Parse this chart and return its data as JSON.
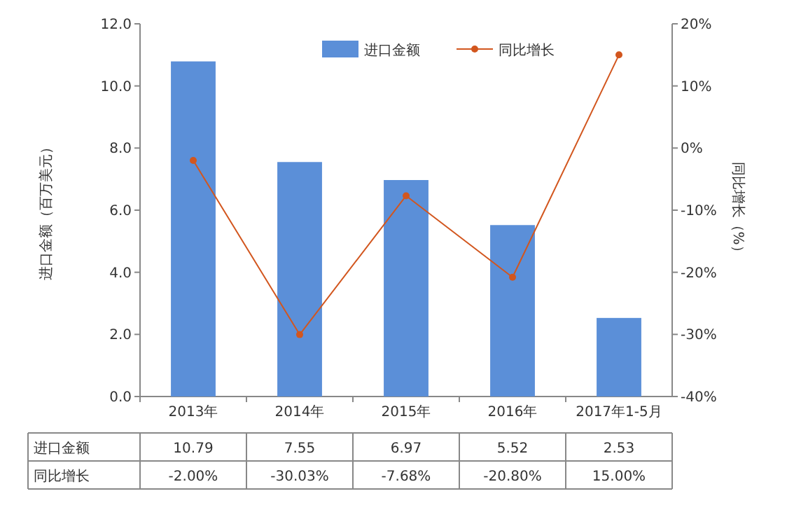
{
  "chart_data": {
    "type": "bar",
    "categories": [
      "2013年",
      "2014年",
      "2015年",
      "2016年",
      "2017年1-5月"
    ],
    "ylabel": "进口金额（百万美元）",
    "y2label": "同比增长（%）",
    "ylim": [
      0,
      12
    ],
    "yticks": [
      {
        "value": 0,
        "label": "0.0"
      },
      {
        "value": 2,
        "label": "2.0"
      },
      {
        "value": 4,
        "label": "4.0"
      },
      {
        "value": 6,
        "label": "6.0"
      },
      {
        "value": 8,
        "label": "8.0"
      },
      {
        "value": 10,
        "label": "10.0"
      },
      {
        "value": 12,
        "label": "12.0"
      }
    ],
    "y2lim": [
      -40,
      20
    ],
    "y2ticks": [
      {
        "value": -40,
        "label": "-40%"
      },
      {
        "value": -30,
        "label": "-30%"
      },
      {
        "value": -20,
        "label": "-20%"
      },
      {
        "value": -10,
        "label": "-10%"
      },
      {
        "value": 0,
        "label": "0%"
      },
      {
        "value": 10,
        "label": "10%"
      },
      {
        "value": 20,
        "label": "20%"
      }
    ],
    "legend": "top right",
    "grid": false,
    "series": [
      {
        "name": "进口金额",
        "color": "#5b8fd8",
        "values": [
          10.79,
          7.55,
          6.97,
          5.52,
          2.53
        ],
        "value_labels": [
          "10.79",
          "7.55",
          "6.97",
          "5.52",
          "2.53"
        ]
      },
      {
        "name": "同比增长",
        "type": "line",
        "axis": "y2",
        "color": "#d2561e",
        "marker": "circle",
        "values": [
          -2.0,
          -30.03,
          -7.68,
          -20.8,
          15.0
        ],
        "value_labels": [
          "-2.00%",
          "-30.03%",
          "-7.68%",
          "-20.80%",
          "15.00%"
        ]
      }
    ]
  }
}
